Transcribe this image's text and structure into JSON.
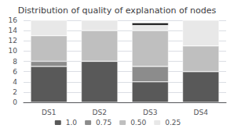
{
  "chart_data": {
    "type": "bar",
    "title": "Distribution of quality of explanation of nodes",
    "categories": [
      "DS1",
      "DS2",
      "DS3",
      "DS4"
    ],
    "stacked": true,
    "series": [
      {
        "name": "1.0",
        "color": "#595959",
        "values": [
          7,
          8,
          4,
          6
        ]
      },
      {
        "name": "0.75",
        "color": "#8c8c8c",
        "values": [
          1,
          0,
          3,
          0
        ]
      },
      {
        "name": "0.50",
        "color": "#bfbfbf",
        "values": [
          5,
          6,
          7,
          5
        ]
      },
      {
        "name": "0.25",
        "color": "#e8e8e8",
        "values": [
          3,
          2,
          1,
          5
        ]
      },
      {
        "color": "#1a1a1a",
        "values": [
          null,
          null,
          0.5,
          null
        ]
      }
    ],
    "ylim": [
      0,
      16
    ],
    "yticks": [
      0,
      2,
      4,
      6,
      8,
      10,
      12,
      14,
      16
    ],
    "grid": true,
    "legend": "bottom"
  }
}
